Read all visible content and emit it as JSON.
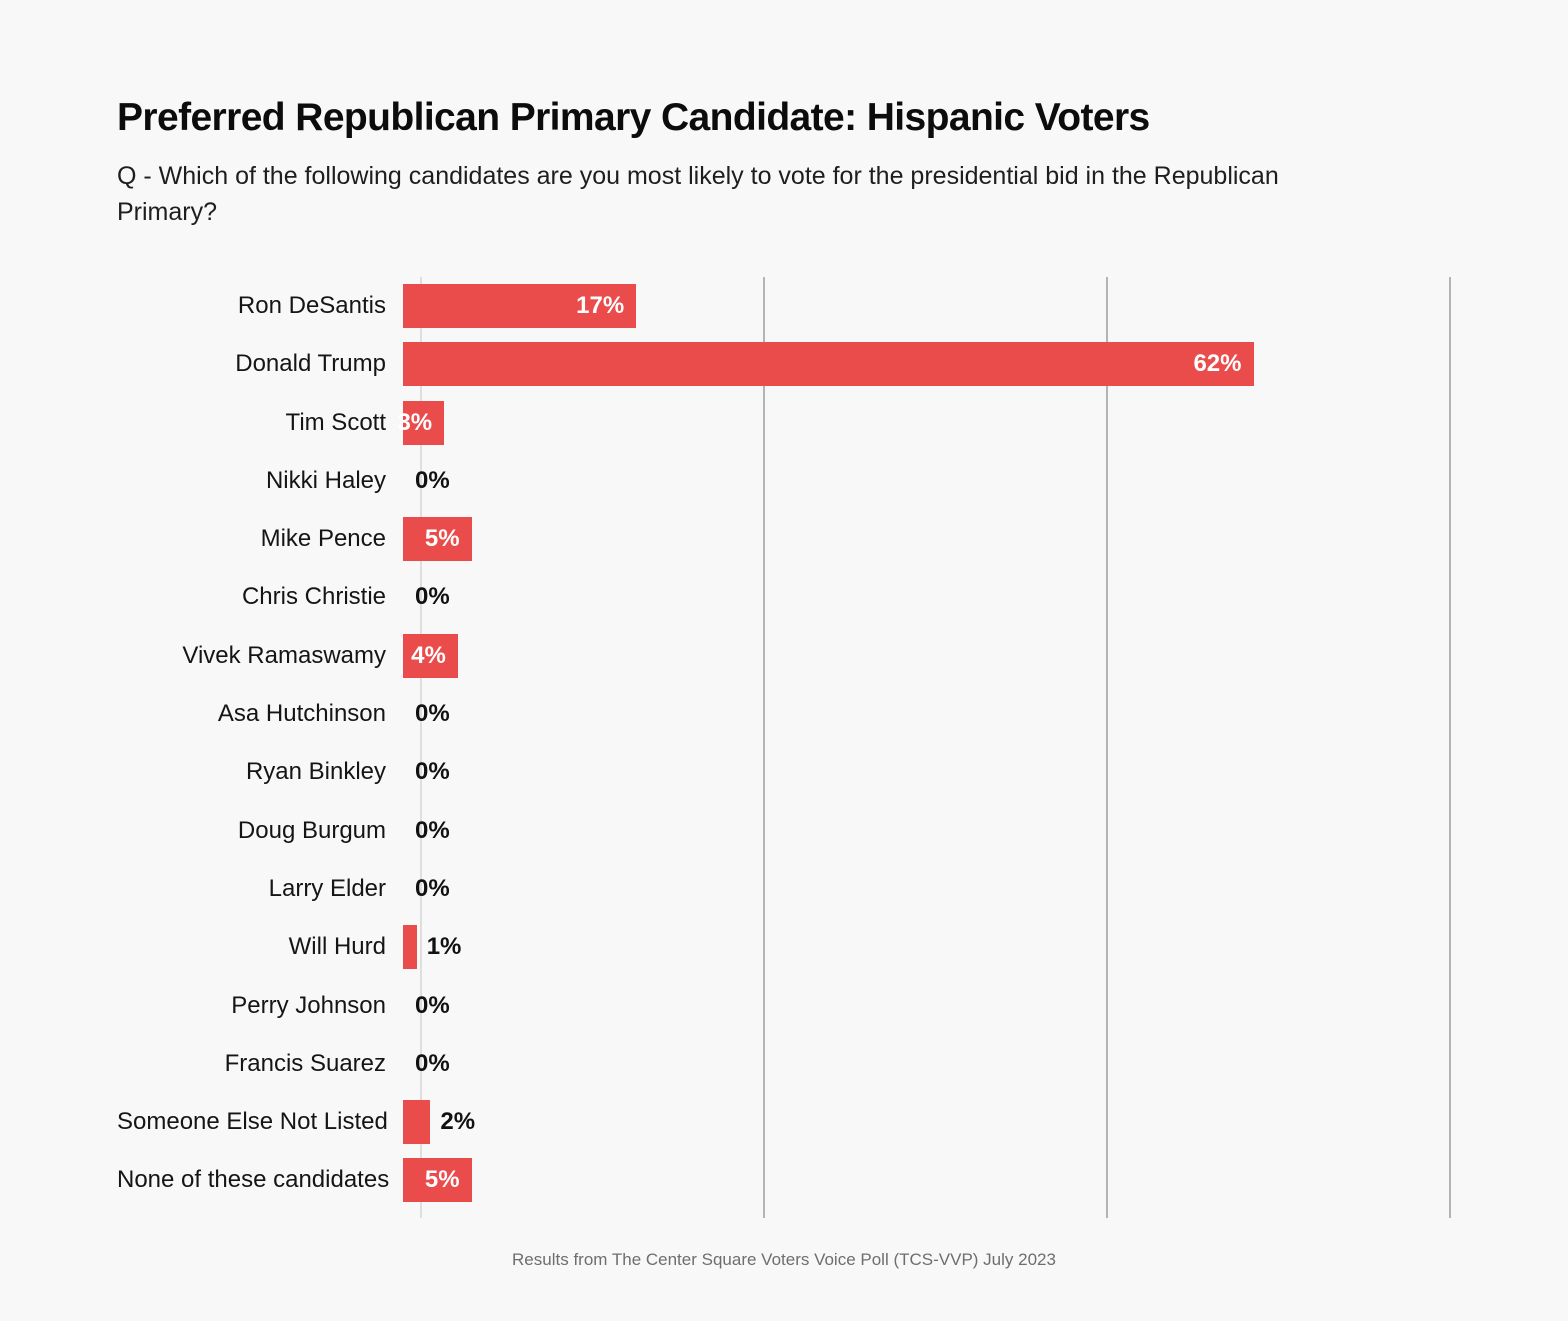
{
  "header": {
    "title": "Preferred Republican Primary Candidate: Hispanic Voters",
    "subtitle": "Q - Which of the following candidates are you most likely to vote for the presidential bid in the Republican Primary?"
  },
  "chart_data": {
    "type": "bar",
    "orientation": "horizontal",
    "title": "Preferred Republican Primary Candidate: Hispanic Voters",
    "categories": [
      "Ron DeSantis",
      "Donald Trump",
      "Tim Scott",
      "Nikki Haley",
      "Mike Pence",
      "Chris Christie",
      "Vivek Ramaswamy",
      "Asa Hutchinson",
      "Ryan Binkley",
      "Doug Burgum",
      "Larry Elder",
      "Will Hurd",
      "Perry Johnson",
      "Francis Suarez",
      "Someone Else Not Listed",
      "None of these candidates"
    ],
    "values": [
      17,
      62,
      3,
      0,
      5,
      0,
      4,
      0,
      0,
      0,
      0,
      1,
      0,
      0,
      2,
      5
    ],
    "value_labels": [
      "17%",
      "62%",
      "3%",
      "0%",
      "5%",
      "0%",
      "4%",
      "0%",
      "0%",
      "0%",
      "0%",
      "1%",
      "0%",
      "0%",
      "2%",
      "5%"
    ],
    "xlabel": "",
    "ylabel": "",
    "xlim": [
      0,
      78
    ],
    "gridlines_pct": [
      0,
      25,
      50,
      75
    ],
    "legend": "none",
    "grid_on": true,
    "inside_label_min_pct": 3,
    "colors": {
      "bar": "#ea4c4b",
      "label_inside": "#ffffff",
      "label_outside": "#111111",
      "axis_line": "#dedede",
      "gridline": "#b4b4b4",
      "background": "#f8f8f8"
    }
  },
  "footer": {
    "source": "Results from The Center Square Voters Voice Poll (TCS-VVP) July 2023"
  }
}
